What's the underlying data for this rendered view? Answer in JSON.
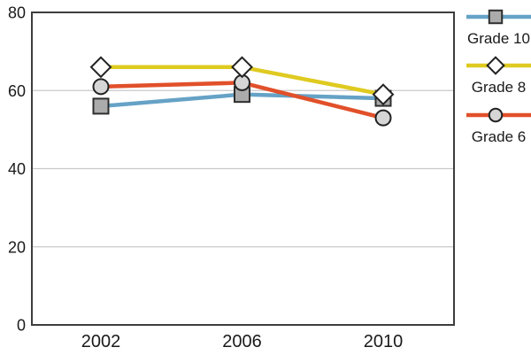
{
  "page": {
    "background": "#ffffff"
  },
  "chart_data": {
    "type": "line",
    "title": "",
    "xlabel": "",
    "ylabel": "",
    "categories": [
      "2002",
      "2006",
      "2010"
    ],
    "y_ticks": [
      0,
      20,
      40,
      60,
      80
    ],
    "ylim": [
      0,
      80
    ],
    "grid": "horizontal-gridlines-at-20-40-60",
    "legend_position": "right",
    "axis_border_color": "#3d3d3d",
    "gridline_color": "#c9c9c9",
    "text_color": "#1a1a1a",
    "draw_order": [
      0,
      2,
      1
    ],
    "series": [
      {
        "name": "Grade 10",
        "values": [
          56,
          59,
          58
        ],
        "line_color": "#66a2c6",
        "marker": "square",
        "marker_fill": "#ababab",
        "marker_stroke": "#2e2e2e"
      },
      {
        "name": "Grade 8",
        "values": [
          66,
          66,
          59
        ],
        "line_color": "#dfca20",
        "marker": "diamond",
        "marker_fill": "#ffffff",
        "marker_stroke": "#222222"
      },
      {
        "name": "Grade 6",
        "values": [
          61,
          62,
          53
        ],
        "line_color": "#e1502a",
        "marker": "circle",
        "marker_fill": "#d6d6d6",
        "marker_stroke": "#222222"
      }
    ]
  }
}
